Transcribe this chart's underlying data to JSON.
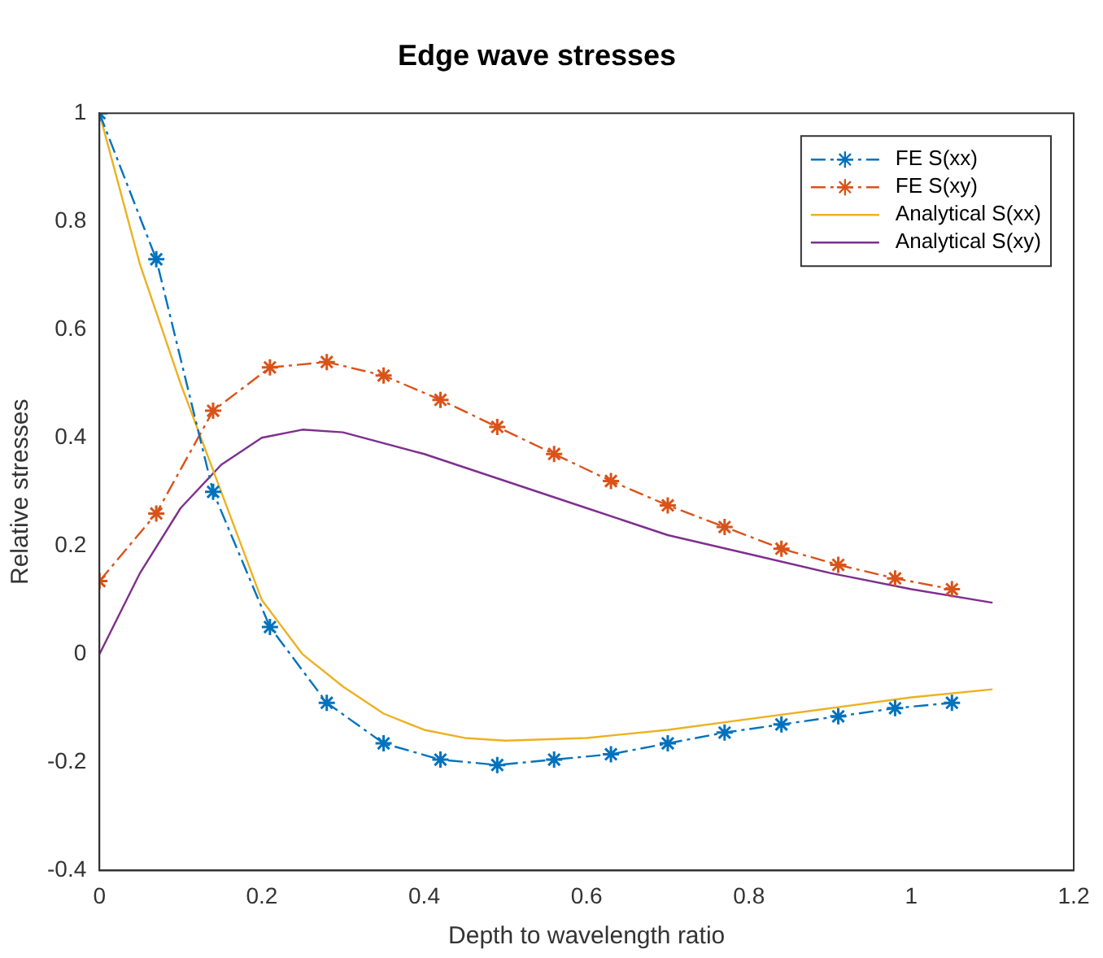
{
  "chart_data": {
    "type": "line",
    "title": "Edge wave stresses",
    "xlabel": "Depth to wavelength ratio",
    "ylabel": "Relative stresses",
    "xlim": [
      0,
      1.2
    ],
    "xticks": [
      0,
      0.2,
      0.4,
      0.6,
      0.8,
      1,
      1.2
    ],
    "ylim": [
      -0.4,
      1
    ],
    "yticks": [
      -0.4,
      -0.2,
      0,
      0.2,
      0.4,
      0.6,
      0.8,
      1
    ],
    "grid": false,
    "legend": "top right",
    "series": [
      {
        "name": "FE S(xx)",
        "color": "#0072bd",
        "marker": "cross",
        "line_style": "dashed",
        "x": [
          0,
          0.07,
          0.14,
          0.21,
          0.28,
          0.35,
          0.42,
          0.49,
          0.56,
          0.63,
          0.7,
          0.77,
          0.84,
          0.91,
          0.98,
          1.05
        ],
        "values": [
          1,
          0.73,
          0.3,
          0.05,
          -0.09,
          -0.165,
          -0.195,
          -0.205,
          -0.195,
          -0.185,
          -0.165,
          -0.145,
          -0.13,
          -0.115,
          -0.1,
          -0.09
        ]
      },
      {
        "name": "FE S(xy)",
        "color": "#d95319",
        "marker": "cross",
        "line_style": "dashed",
        "x": [
          0,
          0.07,
          0.14,
          0.21,
          0.28,
          0.35,
          0.42,
          0.49,
          0.56,
          0.63,
          0.7,
          0.77,
          0.84,
          0.91,
          0.98,
          1.05
        ],
        "values": [
          0.135,
          0.26,
          0.45,
          0.53,
          0.54,
          0.515,
          0.47,
          0.42,
          0.37,
          0.32,
          0.275,
          0.235,
          0.195,
          0.165,
          0.14,
          0.12
        ]
      },
      {
        "name": "Analytical S(xx)",
        "color": "#edb120",
        "marker": "none",
        "line_style": "solid",
        "x": [
          0,
          0.05,
          0.1,
          0.15,
          0.2,
          0.25,
          0.3,
          0.35,
          0.4,
          0.45,
          0.5,
          0.6,
          0.7,
          0.8,
          0.9,
          1,
          1.1
        ],
        "values": [
          1,
          0.72,
          0.5,
          0.3,
          0.1,
          0,
          -0.06,
          -0.11,
          -0.14,
          -0.155,
          -0.16,
          -0.155,
          -0.14,
          -0.12,
          -0.1,
          -0.08,
          -0.065
        ]
      },
      {
        "name": "Analytical S(xy)",
        "color": "#7e2f8e",
        "marker": "none",
        "line_style": "solid",
        "x": [
          0,
          0.05,
          0.1,
          0.15,
          0.2,
          0.25,
          0.3,
          0.4,
          0.5,
          0.6,
          0.7,
          0.8,
          0.9,
          1,
          1.1
        ],
        "values": [
          0,
          0.15,
          0.27,
          0.35,
          0.4,
          0.415,
          0.41,
          0.37,
          0.32,
          0.27,
          0.22,
          0.185,
          0.15,
          0.12,
          0.095
        ]
      }
    ]
  }
}
